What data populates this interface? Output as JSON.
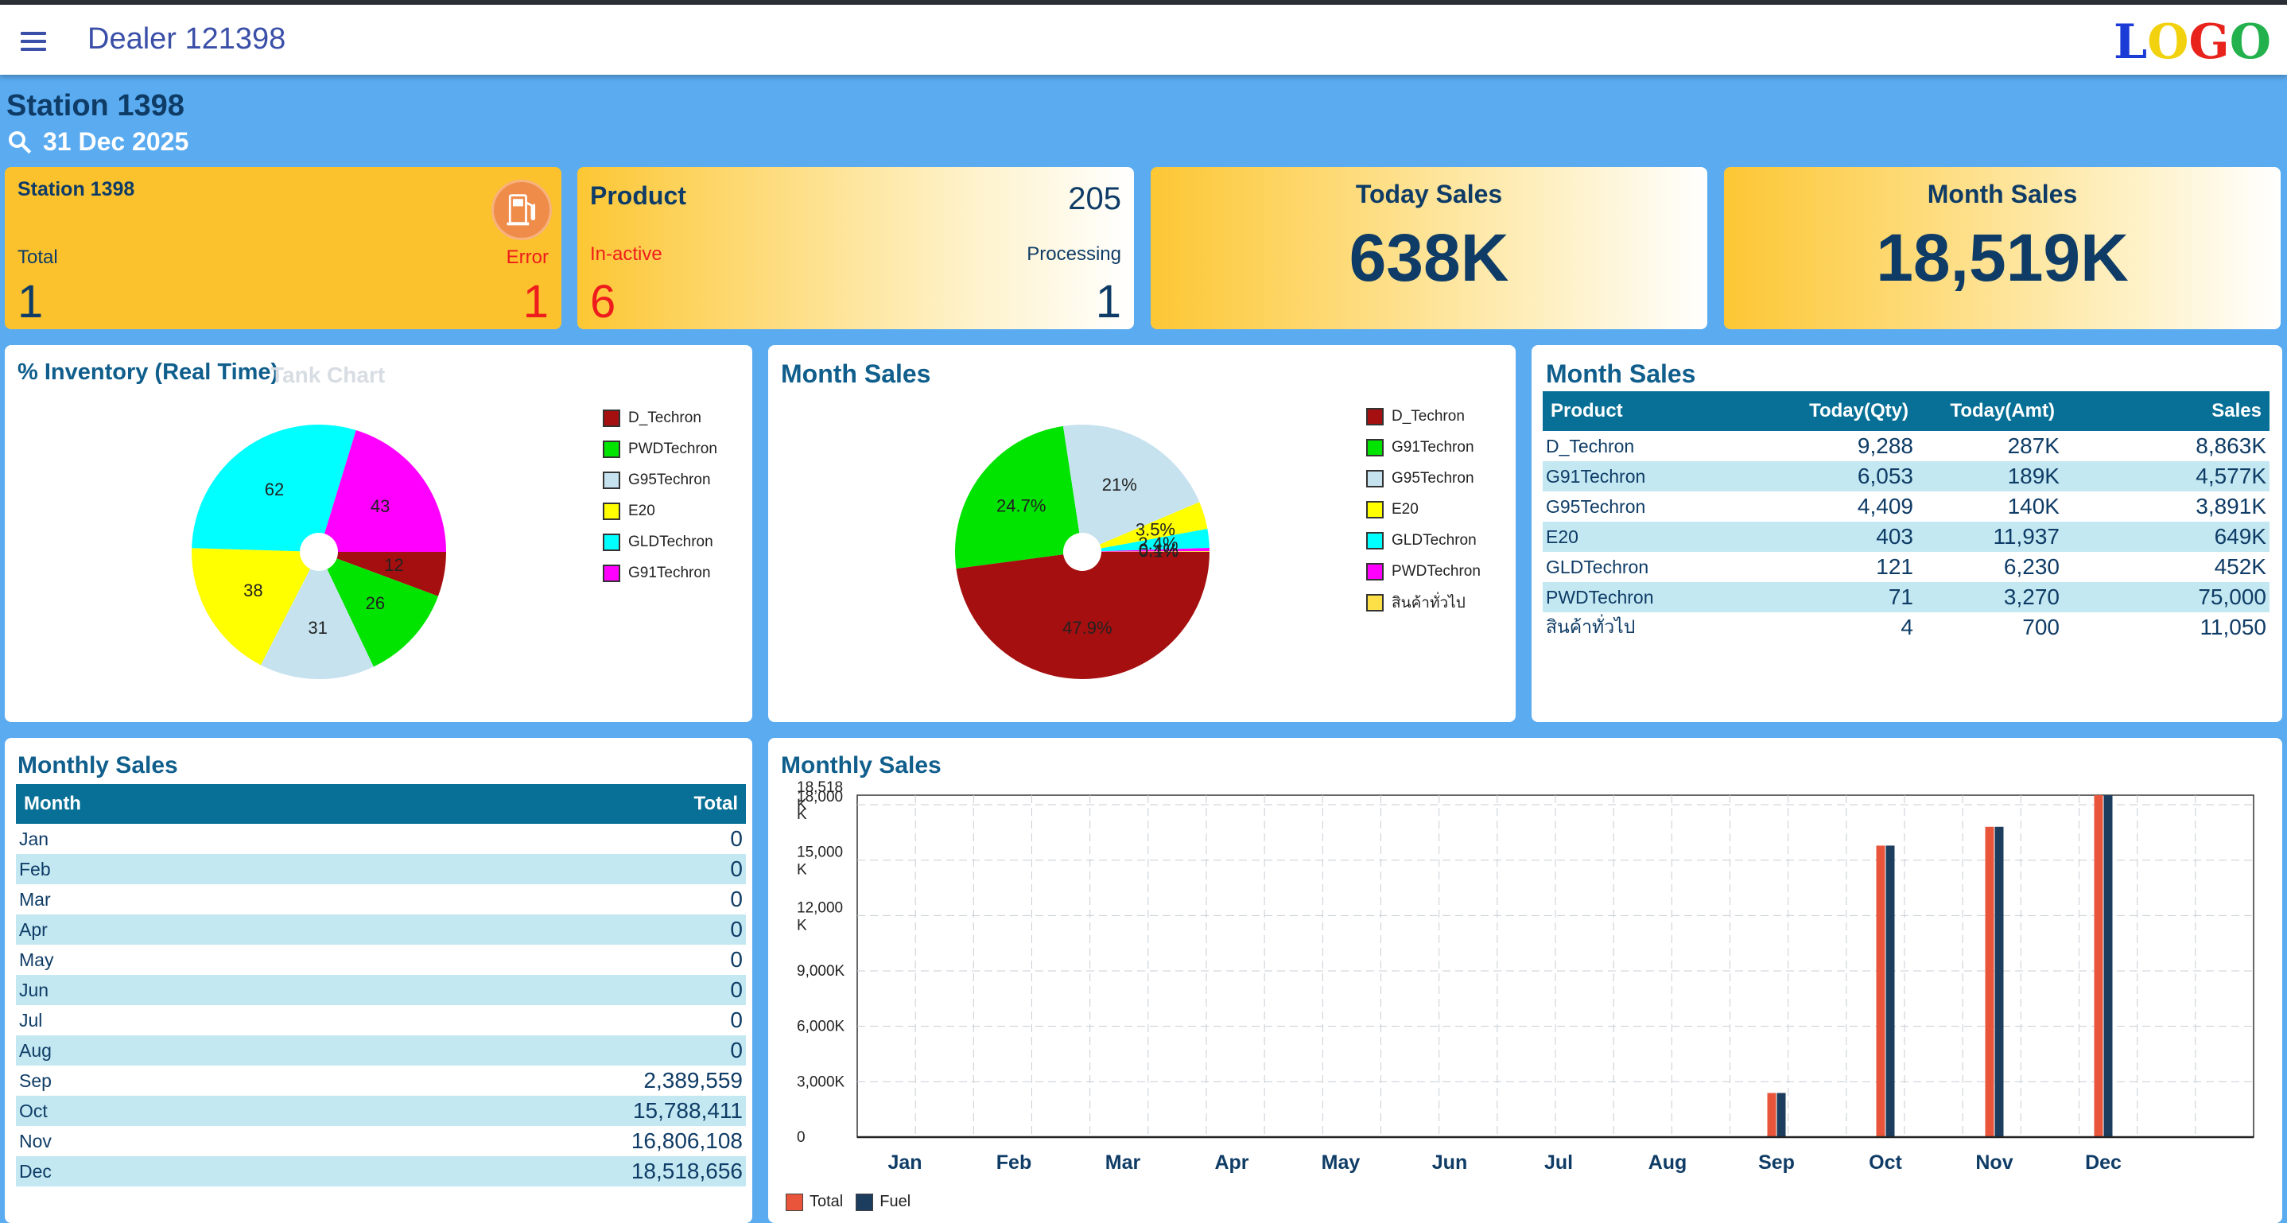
{
  "appbar": {
    "title": "Dealer 121398",
    "logo": [
      "L",
      "O",
      "G",
      "O"
    ],
    "logo_colors": [
      "#1a3bd6",
      "#f2d20f",
      "#e8231c",
      "#22b14c"
    ]
  },
  "header": {
    "station": "Station 1398",
    "date": "31 Dec 2025"
  },
  "kpi": {
    "station": {
      "title": "Station 1398",
      "total_label": "Total",
      "error_label": "Error",
      "total_value": "1",
      "error_value": "1"
    },
    "product": {
      "title": "Product",
      "count": "205",
      "inactive_label": "In-active",
      "processing_label": "Processing",
      "inactive_value": "6",
      "processing_value": "1"
    },
    "today_sales": {
      "title": "Today Sales",
      "value": "638K"
    },
    "month_sales": {
      "title": "Month Sales",
      "value": "18,519K"
    }
  },
  "inventory": {
    "title": "% Inventory (Real Time)",
    "tab": "Tank Chart",
    "legend": [
      "D_Techron",
      "PWDTechron",
      "G95Techron",
      "E20",
      "GLDTechron",
      "G91Techron"
    ]
  },
  "month_sales_pie": {
    "title": "Month Sales",
    "legend": [
      "D_Techron",
      "G91Techron",
      "G95Techron",
      "E20",
      "GLDTechron",
      "PWDTechron",
      "สินค้าทั่วไป"
    ]
  },
  "month_sales_table": {
    "title": "Month Sales",
    "headers": [
      "Product",
      "Today(Qty)",
      "Today(Amt)",
      "Sales"
    ],
    "rows": [
      [
        "D_Techron",
        "9,288",
        "287K",
        "8,863K"
      ],
      [
        "G91Techron",
        "6,053",
        "189K",
        "4,577K"
      ],
      [
        "G95Techron",
        "4,409",
        "140K",
        "3,891K"
      ],
      [
        "E20",
        "403",
        "11,937",
        "649K"
      ],
      [
        "GLDTechron",
        "121",
        "6,230",
        "452K"
      ],
      [
        "PWDTechron",
        "71",
        "3,270",
        "75,000"
      ],
      [
        "สินค้าทั่วไป",
        "4",
        "700",
        "11,050"
      ]
    ]
  },
  "monthly_sales_table": {
    "title": "Monthly Sales",
    "headers": [
      "Month",
      "Total"
    ],
    "rows": [
      [
        "Jan",
        "0"
      ],
      [
        "Feb",
        "0"
      ],
      [
        "Mar",
        "0"
      ],
      [
        "Apr",
        "0"
      ],
      [
        "May",
        "0"
      ],
      [
        "Jun",
        "0"
      ],
      [
        "Jul",
        "0"
      ],
      [
        "Aug",
        "0"
      ],
      [
        "Sep",
        "2,389,559"
      ],
      [
        "Oct",
        "15,788,411"
      ],
      [
        "Nov",
        "16,806,108"
      ],
      [
        "Dec",
        "18,518,656"
      ]
    ]
  },
  "monthly_bar": {
    "title": "Monthly Sales",
    "y_tick_labels": [
      "0",
      "3,000K",
      "6,000K",
      "9,000K",
      "12,000\nK",
      "15,000\nK",
      "18,000\nK",
      "18,518\nK"
    ],
    "legend": [
      "Total",
      "Fuel"
    ]
  },
  "colors": {
    "total": "#e8553a",
    "fuel": "#1c3d5e",
    "header_teal": "#087096",
    "row_alt": "#c3e8f2"
  },
  "chart_data": [
    {
      "type": "pie",
      "title": "% Inventory (Real Time)",
      "categories": [
        "D_Techron",
        "PWDTechron",
        "G95Techron",
        "E20",
        "GLDTechron",
        "G91Techron"
      ],
      "values": [
        12,
        26,
        31,
        38,
        62,
        43
      ],
      "colors": [
        "#a50f0f",
        "#00e400",
        "#c6e2ee",
        "#ffff00",
        "#00ffff",
        "#ff00ff"
      ]
    },
    {
      "type": "pie",
      "title": "Month Sales",
      "categories": [
        "D_Techron",
        "G91Techron",
        "G95Techron",
        "E20",
        "GLDTechron",
        "PWDTechron",
        "สินค้าทั่วไป"
      ],
      "values": [
        47.9,
        24.7,
        21,
        3.5,
        2.4,
        0.4,
        0.1
      ],
      "labels": [
        "47.9%",
        "24.7%",
        "21%",
        "3.5%",
        "2.4%",
        "0.4%",
        "0.1%"
      ],
      "colors": [
        "#a50f0f",
        "#00e400",
        "#c6e2ee",
        "#ffff00",
        "#00ffff",
        "#ff00ff",
        "#fde047"
      ]
    },
    {
      "type": "bar",
      "title": "Monthly Sales",
      "categories": [
        "Jan",
        "Feb",
        "Mar",
        "Apr",
        "May",
        "Jun",
        "Jul",
        "Aug",
        "Sep",
        "Oct",
        "Nov",
        "Dec"
      ],
      "series": [
        {
          "name": "Total",
          "values": [
            0,
            0,
            0,
            0,
            0,
            0,
            0,
            0,
            2390,
            15788,
            16806,
            18519
          ]
        },
        {
          "name": "Fuel",
          "values": [
            0,
            0,
            0,
            0,
            0,
            0,
            0,
            0,
            2390,
            15788,
            16806,
            18519
          ]
        }
      ],
      "ylabel": "",
      "ylim": [
        0,
        18519
      ],
      "grid": true,
      "legend_position": "bottom-left"
    }
  ]
}
